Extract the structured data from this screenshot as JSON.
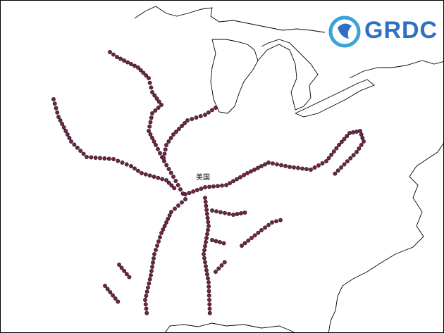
{
  "map": {
    "country_label": "美国",
    "station_color": "#7a1f4a",
    "station_stroke": "#222222",
    "coastline_color": "#000000"
  },
  "logo": {
    "text": "GRDC",
    "color": "#2f6fc4",
    "globe_color": "#3aa3d9"
  }
}
